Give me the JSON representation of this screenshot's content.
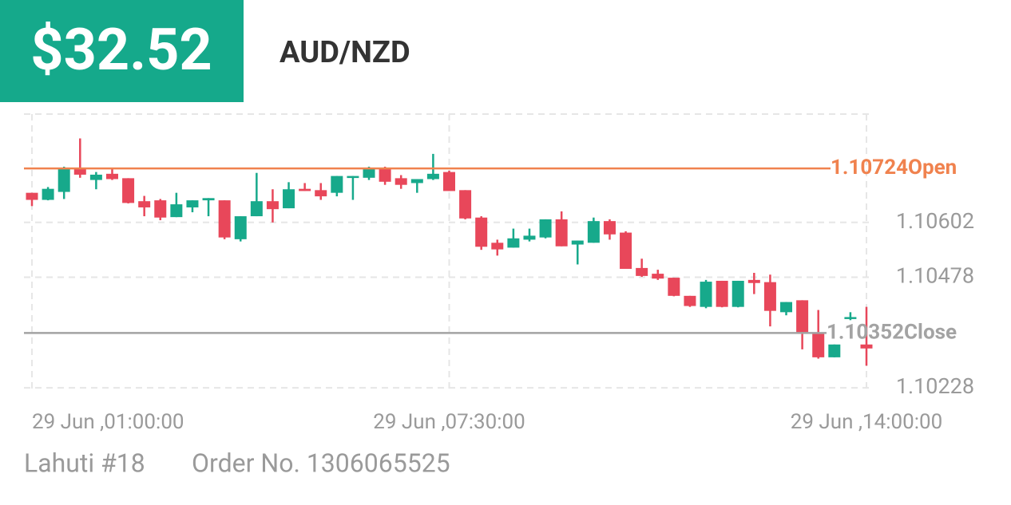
{
  "header": {
    "profit": "$32.52",
    "symbol": "AUD/NZD"
  },
  "chart_data": {
    "type": "candlestick",
    "categories": [
      "29 Jun ,01:00:00",
      null,
      null,
      null,
      null,
      null,
      null,
      null,
      null,
      null,
      null,
      null,
      null,
      null,
      null,
      null,
      null,
      null,
      null,
      null,
      null,
      null,
      null,
      null,
      null,
      null,
      "29 Jun ,07:30:00",
      null,
      null,
      null,
      null,
      null,
      null,
      null,
      null,
      null,
      null,
      null,
      null,
      null,
      null,
      null,
      null,
      null,
      null,
      null,
      null,
      null,
      null,
      null,
      null,
      null,
      "29 Jun ,14:00:00"
    ],
    "open": [
      1.10669,
      1.10653,
      1.10671,
      1.10725,
      1.10698,
      1.10712,
      1.10702,
      1.1065,
      1.10652,
      1.10614,
      1.10636,
      1.10652,
      1.10652,
      1.10564,
      1.10616,
      1.1065,
      1.10634,
      1.10678,
      1.10675,
      1.10669,
      1.10703,
      1.10703,
      1.10725,
      1.10702,
      1.10691,
      1.107,
      1.10716,
      1.10675,
      1.10613,
      1.10556,
      1.10545,
      1.10563,
      1.10568,
      1.10609,
      1.10552,
      1.10556,
      1.10605,
      1.10579,
      1.10499,
      1.10486,
      1.10477,
      1.10436,
      1.10411,
      1.1047,
      1.10411,
      1.10472,
      1.10467,
      1.10399,
      1.10426,
      1.10351,
      1.10297,
      1.10385,
      1.10326
    ],
    "high": [
      1.10669,
      1.10682,
      1.10728,
      1.10792,
      1.10716,
      1.10726,
      1.10702,
      1.10662,
      1.10655,
      1.10669,
      1.10652,
      1.10657,
      1.10652,
      1.10616,
      1.10714,
      1.10677,
      1.10693,
      1.10691,
      1.10691,
      1.10707,
      1.10707,
      1.10728,
      1.10728,
      1.10709,
      1.107,
      1.10757,
      1.10719,
      1.10675,
      1.10616,
      1.10563,
      1.10588,
      1.10588,
      1.10609,
      1.10627,
      1.10561,
      1.10613,
      1.10609,
      1.10582,
      1.1052,
      1.10495,
      1.10477,
      1.10436,
      1.10472,
      1.1047,
      1.1047,
      1.10488,
      1.10484,
      1.10422,
      1.10426,
      1.10404,
      1.10326,
      1.10399,
      1.10411
    ],
    "low": [
      1.10639,
      1.10652,
      1.10655,
      1.10703,
      1.10677,
      1.10698,
      1.10645,
      1.10616,
      1.10607,
      1.10614,
      1.10625,
      1.10616,
      1.10564,
      1.10559,
      1.10616,
      1.10602,
      1.10634,
      1.10673,
      1.10653,
      1.10661,
      1.10653,
      1.10698,
      1.10687,
      1.10678,
      1.10669,
      1.10698,
      1.10673,
      1.10609,
      1.1054,
      1.10527,
      1.10545,
      1.10559,
      1.10566,
      1.10548,
      1.10507,
      1.10556,
      1.10563,
      1.10497,
      1.10479,
      1.10472,
      1.10435,
      1.10411,
      1.10408,
      1.1041,
      1.1041,
      1.1044,
      1.10367,
      1.10392,
      1.10315,
      1.10294,
      1.10297,
      1.10381,
      1.10278
    ],
    "close": [
      1.10653,
      1.10678,
      1.10725,
      1.1071,
      1.1071,
      1.107,
      1.10646,
      1.10636,
      1.10613,
      1.10643,
      1.10652,
      1.10657,
      1.10568,
      1.10616,
      1.1065,
      1.10632,
      1.10677,
      1.10673,
      1.10661,
      1.10707,
      1.10707,
      1.10725,
      1.10694,
      1.10687,
      1.107,
      1.10712,
      1.10673,
      1.10611,
      1.10547,
      1.10541,
      1.10566,
      1.10572,
      1.10609,
      1.10548,
      1.10561,
      1.10605,
      1.10575,
      1.10497,
      1.10481,
      1.10475,
      1.10436,
      1.10413,
      1.10468,
      1.10411,
      1.1047,
      1.10465,
      1.10402,
      1.10422,
      1.10353,
      1.10297,
      1.10326,
      1.10388,
      1.10317
    ],
    "up_color": "#17a98b",
    "down_color": "#e8475a",
    "ylim": [
      1.10221,
      1.10847
    ],
    "yticks": [
      1.10228,
      1.10478,
      1.10602
    ],
    "grid": true,
    "reference_lines": [
      {
        "value": 1.10724,
        "label": "Open",
        "color": "#f0824e"
      },
      {
        "value": 1.10352,
        "label": "Close",
        "color": "#a3a3a3"
      }
    ]
  },
  "footer": {
    "account": "Lahuti #18",
    "order": "Order No. 1306065525"
  }
}
